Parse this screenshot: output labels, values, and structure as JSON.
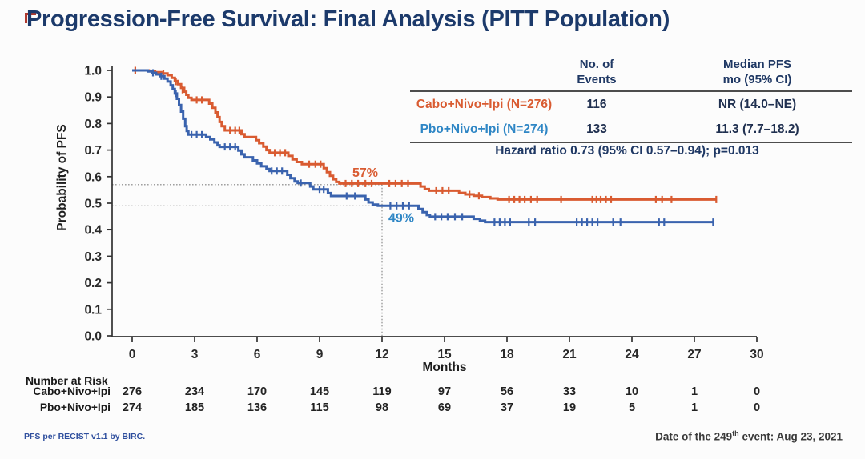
{
  "title": "Progression-Free Survival: Final Analysis (PITT Population)",
  "results_table": {
    "col_events_header": "No. of\nEvents",
    "col_median_header": "Median PFS\nmo (95% CI)",
    "rows": [
      {
        "label": "Cabo+Nivo+Ipi (N=276)",
        "events": "116",
        "median_pfs": "NR (14.0–NE)",
        "color": "#d95b31"
      },
      {
        "label": "Pbo+Nivo+Ipi (N=274)",
        "events": "133",
        "median_pfs": "11.3 (7.7–18.2)",
        "color": "#2e86c5"
      }
    ],
    "hazard_text": "Hazard ratio 0.73 (95% CI 0.57–0.94); p=0.013"
  },
  "chart_data": {
    "type": "line",
    "subtype": "kaplan-meier",
    "title": "",
    "xlabel": "Months",
    "ylabel": "Probability of PFS",
    "xlim": [
      0,
      30
    ],
    "ylim": [
      0.0,
      1.0
    ],
    "xticks": [
      0,
      3,
      6,
      9,
      12,
      15,
      18,
      21,
      24,
      27,
      30
    ],
    "yticks": [
      0.0,
      0.1,
      0.2,
      0.3,
      0.4,
      0.5,
      0.6,
      0.7,
      0.8,
      0.9,
      1.0
    ],
    "grid": false,
    "legend": "none (series identified in results table)",
    "landmark": {
      "month": 12,
      "points": [
        {
          "series": "Cabo+Nivo+Ipi",
          "p": 0.57,
          "label": "57%",
          "color": "#d95b31"
        },
        {
          "series": "Pbo+Nivo+Ipi",
          "p": 0.49,
          "label": "49%",
          "color": "#2e86c5"
        }
      ]
    },
    "series": [
      {
        "id": "cabo-nivo-ipi",
        "name": "Cabo+Nivo+Ipi",
        "color": "#d95b31",
        "end_month": 28.05,
        "steps": [
          [
            0,
            1.0
          ],
          [
            0.8,
            0.997
          ],
          [
            1.1,
            0.993
          ],
          [
            1.4,
            0.989
          ],
          [
            1.7,
            0.982
          ],
          [
            1.9,
            0.972
          ],
          [
            2.05,
            0.96
          ],
          [
            2.2,
            0.948
          ],
          [
            2.35,
            0.934
          ],
          [
            2.5,
            0.92
          ],
          [
            2.6,
            0.908
          ],
          [
            2.7,
            0.897
          ],
          [
            2.85,
            0.889
          ],
          [
            3.7,
            0.875
          ],
          [
            3.85,
            0.859
          ],
          [
            4.0,
            0.842
          ],
          [
            4.1,
            0.824
          ],
          [
            4.2,
            0.806
          ],
          [
            4.3,
            0.79
          ],
          [
            4.45,
            0.774
          ],
          [
            5.25,
            0.76
          ],
          [
            5.4,
            0.749
          ],
          [
            5.95,
            0.737
          ],
          [
            6.1,
            0.726
          ],
          [
            6.3,
            0.713
          ],
          [
            6.45,
            0.7
          ],
          [
            6.6,
            0.69
          ],
          [
            7.5,
            0.678
          ],
          [
            7.7,
            0.665
          ],
          [
            7.9,
            0.655
          ],
          [
            8.15,
            0.647
          ],
          [
            9.2,
            0.632
          ],
          [
            9.35,
            0.617
          ],
          [
            9.5,
            0.603
          ],
          [
            9.65,
            0.59
          ],
          [
            9.8,
            0.58
          ],
          [
            9.95,
            0.574
          ],
          [
            13.85,
            0.563
          ],
          [
            14.05,
            0.553
          ],
          [
            14.25,
            0.547
          ],
          [
            15.7,
            0.539
          ],
          [
            16.0,
            0.533
          ],
          [
            16.4,
            0.528
          ],
          [
            16.8,
            0.523
          ],
          [
            17.2,
            0.518
          ],
          [
            17.55,
            0.514
          ]
        ],
        "censors": [
          [
            0.15,
            1.0
          ],
          [
            1.5,
            0.989
          ],
          [
            2.1,
            0.958
          ],
          [
            2.42,
            0.927
          ],
          [
            3.1,
            0.889
          ],
          [
            3.35,
            0.889
          ],
          [
            4.7,
            0.774
          ],
          [
            4.95,
            0.774
          ],
          [
            5.15,
            0.774
          ],
          [
            6.85,
            0.69
          ],
          [
            7.1,
            0.69
          ],
          [
            7.35,
            0.69
          ],
          [
            8.5,
            0.647
          ],
          [
            8.8,
            0.647
          ],
          [
            9.05,
            0.647
          ],
          [
            10.25,
            0.574
          ],
          [
            10.55,
            0.574
          ],
          [
            10.85,
            0.574
          ],
          [
            11.2,
            0.574
          ],
          [
            11.5,
            0.574
          ],
          [
            12.35,
            0.574
          ],
          [
            12.65,
            0.574
          ],
          [
            12.95,
            0.574
          ],
          [
            13.25,
            0.574
          ],
          [
            14.6,
            0.547
          ],
          [
            14.9,
            0.547
          ],
          [
            15.2,
            0.547
          ],
          [
            16.2,
            0.533
          ],
          [
            16.65,
            0.528
          ],
          [
            18.1,
            0.514
          ],
          [
            18.35,
            0.514
          ],
          [
            18.6,
            0.514
          ],
          [
            18.85,
            0.514
          ],
          [
            19.15,
            0.514
          ],
          [
            19.45,
            0.514
          ],
          [
            20.6,
            0.514
          ],
          [
            22.1,
            0.514
          ],
          [
            22.3,
            0.514
          ],
          [
            22.5,
            0.514
          ],
          [
            22.75,
            0.514
          ],
          [
            23.0,
            0.514
          ],
          [
            25.15,
            0.514
          ],
          [
            25.45,
            0.514
          ],
          [
            25.9,
            0.514
          ],
          [
            28.05,
            0.514
          ]
        ]
      },
      {
        "id": "pbo-nivo-ipi",
        "name": "Pbo+Nivo+Ipi",
        "color": "#3a63ae",
        "end_month": 27.9,
        "steps": [
          [
            0,
            1.0
          ],
          [
            0.75,
            0.996
          ],
          [
            0.95,
            0.991
          ],
          [
            1.15,
            0.985
          ],
          [
            1.35,
            0.978
          ],
          [
            1.55,
            0.969
          ],
          [
            1.7,
            0.958
          ],
          [
            1.85,
            0.944
          ],
          [
            1.95,
            0.93
          ],
          [
            2.05,
            0.913
          ],
          [
            2.15,
            0.893
          ],
          [
            2.25,
            0.87
          ],
          [
            2.35,
            0.845
          ],
          [
            2.45,
            0.818
          ],
          [
            2.55,
            0.79
          ],
          [
            2.62,
            0.772
          ],
          [
            2.7,
            0.758
          ],
          [
            3.55,
            0.749
          ],
          [
            3.75,
            0.74
          ],
          [
            3.95,
            0.729
          ],
          [
            4.1,
            0.718
          ],
          [
            4.2,
            0.712
          ],
          [
            5.1,
            0.698
          ],
          [
            5.25,
            0.684
          ],
          [
            5.4,
            0.673
          ],
          [
            5.8,
            0.661
          ],
          [
            6.0,
            0.65
          ],
          [
            6.2,
            0.639
          ],
          [
            6.45,
            0.629
          ],
          [
            6.6,
            0.621
          ],
          [
            7.45,
            0.607
          ],
          [
            7.6,
            0.594
          ],
          [
            7.8,
            0.582
          ],
          [
            7.95,
            0.576
          ],
          [
            8.55,
            0.563
          ],
          [
            8.7,
            0.552
          ],
          [
            9.4,
            0.538
          ],
          [
            9.55,
            0.527
          ],
          [
            11.2,
            0.514
          ],
          [
            11.35,
            0.503
          ],
          [
            11.55,
            0.495
          ],
          [
            11.8,
            0.49
          ],
          [
            13.75,
            0.478
          ],
          [
            13.95,
            0.466
          ],
          [
            14.15,
            0.455
          ],
          [
            14.3,
            0.449
          ],
          [
            16.4,
            0.441
          ],
          [
            16.7,
            0.434
          ],
          [
            16.95,
            0.429
          ]
        ],
        "censors": [
          [
            1.0,
            0.991
          ],
          [
            1.4,
            0.978
          ],
          [
            2.1,
            0.913
          ],
          [
            2.85,
            0.758
          ],
          [
            3.1,
            0.758
          ],
          [
            3.35,
            0.758
          ],
          [
            4.45,
            0.712
          ],
          [
            4.7,
            0.712
          ],
          [
            4.95,
            0.712
          ],
          [
            6.7,
            0.621
          ],
          [
            6.95,
            0.621
          ],
          [
            7.2,
            0.621
          ],
          [
            8.1,
            0.576
          ],
          [
            9.0,
            0.552
          ],
          [
            9.2,
            0.552
          ],
          [
            10.3,
            0.527
          ],
          [
            10.7,
            0.527
          ],
          [
            12.4,
            0.49
          ],
          [
            12.7,
            0.49
          ],
          [
            13.0,
            0.49
          ],
          [
            13.3,
            0.49
          ],
          [
            14.55,
            0.449
          ],
          [
            14.85,
            0.449
          ],
          [
            15.15,
            0.449
          ],
          [
            15.5,
            0.449
          ],
          [
            15.85,
            0.449
          ],
          [
            17.4,
            0.429
          ],
          [
            17.65,
            0.429
          ],
          [
            17.9,
            0.429
          ],
          [
            18.15,
            0.429
          ],
          [
            19.05,
            0.429
          ],
          [
            19.35,
            0.429
          ],
          [
            21.35,
            0.429
          ],
          [
            21.6,
            0.429
          ],
          [
            21.85,
            0.429
          ],
          [
            22.1,
            0.429
          ],
          [
            22.35,
            0.429
          ],
          [
            23.1,
            0.429
          ],
          [
            23.45,
            0.429
          ],
          [
            25.3,
            0.429
          ],
          [
            25.55,
            0.429
          ],
          [
            27.9,
            0.429
          ]
        ]
      }
    ]
  },
  "risk_table": {
    "header": "Number at Risk",
    "months": [
      0,
      3,
      6,
      9,
      12,
      15,
      18,
      21,
      24,
      27,
      30
    ],
    "rows": [
      {
        "label": "Cabo+Nivo+Ipi",
        "counts": [
          276,
          234,
          170,
          145,
          119,
          97,
          56,
          33,
          10,
          1,
          0
        ]
      },
      {
        "label": "Pbo+Nivo+Ipi",
        "counts": [
          274,
          185,
          136,
          115,
          98,
          69,
          37,
          19,
          5,
          1,
          0
        ]
      }
    ]
  },
  "footer": {
    "left": "PFS per RECIST v1.1 by BIRC.",
    "right_prefix": "Date of the 249",
    "right_sup": "th",
    "right_suffix": " event: Aug 23, 2021"
  }
}
